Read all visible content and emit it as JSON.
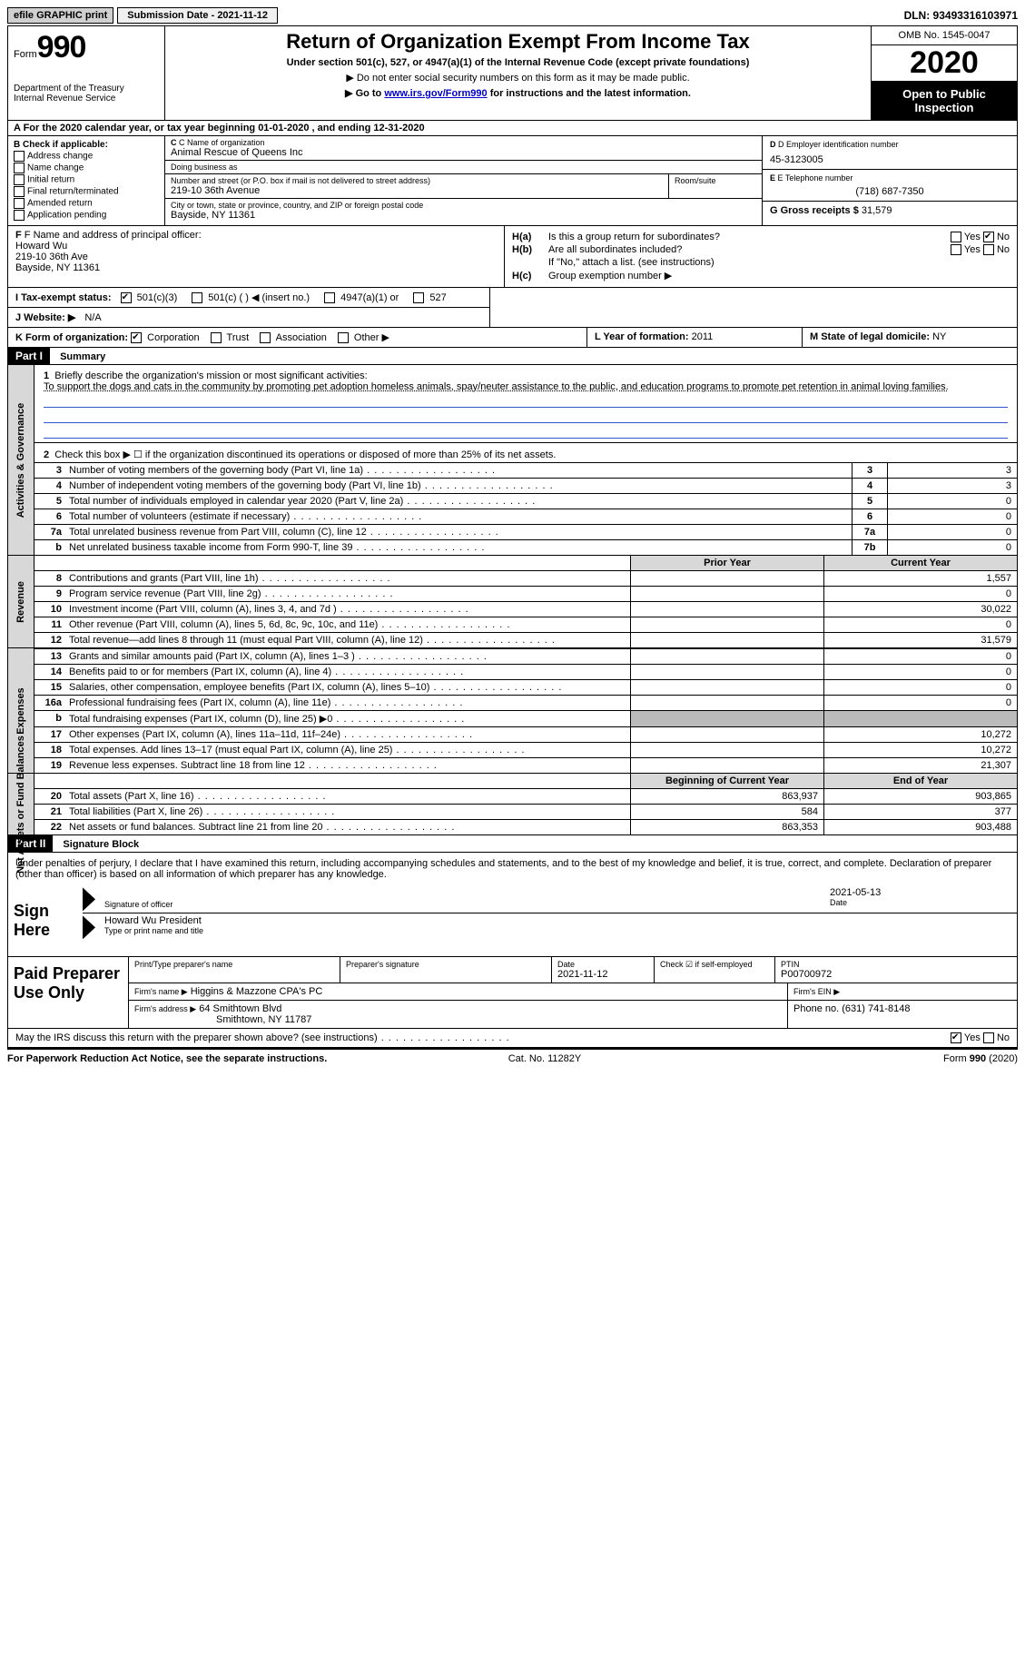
{
  "topbar": {
    "efile": "efile GRAPHIC print",
    "submission_label": "Submission Date - 2021-11-12",
    "dln": "DLN: 93493316103971"
  },
  "header": {
    "form_word": "Form",
    "form_number": "990",
    "dept": "Department of the Treasury\nInternal Revenue Service",
    "title": "Return of Organization Exempt From Income Tax",
    "subtitle": "Under section 501(c), 527, or 4947(a)(1) of the Internal Revenue Code (except private foundations)",
    "note1": "▶ Do not enter social security numbers on this form as it may be made public.",
    "note2_pre": "▶ Go to ",
    "note2_link": "www.irs.gov/Form990",
    "note2_post": " for instructions and the latest information.",
    "omb": "OMB No. 1545-0047",
    "year": "2020",
    "inspection": "Open to Public Inspection"
  },
  "row_a": "A For the 2020 calendar year, or tax year beginning 01-01-2020   , and ending 12-31-2020",
  "section_b": {
    "label": "B Check if applicable:",
    "items": [
      "Address change",
      "Name change",
      "Initial return",
      "Final return/terminated",
      "Amended return",
      "Application pending"
    ]
  },
  "section_c": {
    "name_label": "C Name of organization",
    "name": "Animal Rescue of Queens Inc",
    "dba_label": "Doing business as",
    "dba": "",
    "street_label": "Number and street (or P.O. box if mail is not delivered to street address)",
    "street": "219-10 36th Avenue",
    "room_label": "Room/suite",
    "city_label": "City or town, state or province, country, and ZIP or foreign postal code",
    "city": "Bayside, NY  11361"
  },
  "section_d": {
    "label": "D Employer identification number",
    "value": "45-3123005"
  },
  "section_e": {
    "label": "E Telephone number",
    "value": "(718) 687-7350"
  },
  "section_g": {
    "label": "G Gross receipts $",
    "value": "31,579"
  },
  "section_f": {
    "label": "F  Name and address of principal officer:",
    "name": "Howard Wu",
    "addr1": "219-10 36th Ave",
    "addr2": "Bayside, NY  11361"
  },
  "section_h": {
    "a_label": "H(a)",
    "a_text": "Is this a group return for subordinates?",
    "a_no_checked": true,
    "b_label": "H(b)",
    "b_text": "Are all subordinates included?",
    "b_note": "If \"No,\" attach a list. (see instructions)",
    "c_label": "H(c)",
    "c_text": "Group exemption number ▶"
  },
  "row_i": {
    "label": "I  Tax-exempt status:",
    "opts": [
      "501(c)(3)",
      "501(c) (  ) ◀ (insert no.)",
      "4947(a)(1) or",
      "527"
    ],
    "checked_index": 0
  },
  "row_j": {
    "label": "J  Website: ▶",
    "value": "N/A"
  },
  "row_k": {
    "label": "K Form of organization:",
    "opts": [
      "Corporation",
      "Trust",
      "Association",
      "Other ▶"
    ],
    "checked_index": 0
  },
  "row_l": {
    "label": "L Year of formation:",
    "value": "2011"
  },
  "row_m": {
    "label": "M State of legal domicile:",
    "value": "NY"
  },
  "part1": {
    "hdr": "Part I",
    "title": "Summary",
    "q1_label": "1",
    "q1_text": "Briefly describe the organization's mission or most significant activities:",
    "q1_answer": "To support the dogs and cats in the community by promoting pet adoption homeless animals, spay/neuter assistance to the public, and education programs to promote pet retention in animal loving families.",
    "q2_label": "2",
    "q2_text": "Check this box ▶ ☐  if the organization discontinued its operations or disposed of more than 25% of its net assets.",
    "sides": {
      "gov": "Activities & Governance",
      "rev": "Revenue",
      "exp": "Expenses",
      "net": "Net Assets or Fund Balances"
    },
    "gov_rows": [
      {
        "n": "3",
        "t": "Number of voting members of the governing body (Part VI, line 1a)",
        "box": "3",
        "v": "3"
      },
      {
        "n": "4",
        "t": "Number of independent voting members of the governing body (Part VI, line 1b)",
        "box": "4",
        "v": "3"
      },
      {
        "n": "5",
        "t": "Total number of individuals employed in calendar year 2020 (Part V, line 2a)",
        "box": "5",
        "v": "0"
      },
      {
        "n": "6",
        "t": "Total number of volunteers (estimate if necessary)",
        "box": "6",
        "v": "0"
      },
      {
        "n": "7a",
        "t": "Total unrelated business revenue from Part VIII, column (C), line 12",
        "box": "7a",
        "v": "0"
      },
      {
        "n": "b",
        "t": "Net unrelated business taxable income from Form 990-T, line 39",
        "box": "7b",
        "v": "0"
      }
    ],
    "pycy_hdr": {
      "py": "Prior Year",
      "cy": "Current Year"
    },
    "rev_rows": [
      {
        "n": "8",
        "t": "Contributions and grants (Part VIII, line 1h)",
        "py": "",
        "cy": "1,557"
      },
      {
        "n": "9",
        "t": "Program service revenue (Part VIII, line 2g)",
        "py": "",
        "cy": "0"
      },
      {
        "n": "10",
        "t": "Investment income (Part VIII, column (A), lines 3, 4, and 7d )",
        "py": "",
        "cy": "30,022"
      },
      {
        "n": "11",
        "t": "Other revenue (Part VIII, column (A), lines 5, 6d, 8c, 9c, 10c, and 11e)",
        "py": "",
        "cy": "0"
      },
      {
        "n": "12",
        "t": "Total revenue—add lines 8 through 11 (must equal Part VIII, column (A), line 12)",
        "py": "",
        "cy": "31,579"
      }
    ],
    "exp_rows": [
      {
        "n": "13",
        "t": "Grants and similar amounts paid (Part IX, column (A), lines 1–3 )",
        "py": "",
        "cy": "0"
      },
      {
        "n": "14",
        "t": "Benefits paid to or for members (Part IX, column (A), line 4)",
        "py": "",
        "cy": "0"
      },
      {
        "n": "15",
        "t": "Salaries, other compensation, employee benefits (Part IX, column (A), lines 5–10)",
        "py": "",
        "cy": "0"
      },
      {
        "n": "16a",
        "t": "Professional fundraising fees (Part IX, column (A), line 11e)",
        "py": "",
        "cy": "0"
      },
      {
        "n": "b",
        "t": "Total fundraising expenses (Part IX, column (D), line 25) ▶0",
        "py": "GRAY",
        "cy": "GRAY"
      },
      {
        "n": "17",
        "t": "Other expenses (Part IX, column (A), lines 11a–11d, 11f–24e)",
        "py": "",
        "cy": "10,272"
      },
      {
        "n": "18",
        "t": "Total expenses. Add lines 13–17 (must equal Part IX, column (A), line 25)",
        "py": "",
        "cy": "10,272"
      },
      {
        "n": "19",
        "t": "Revenue less expenses. Subtract line 18 from line 12",
        "py": "",
        "cy": "21,307"
      }
    ],
    "net_hdr": {
      "py": "Beginning of Current Year",
      "cy": "End of Year"
    },
    "net_rows": [
      {
        "n": "20",
        "t": "Total assets (Part X, line 16)",
        "py": "863,937",
        "cy": "903,865"
      },
      {
        "n": "21",
        "t": "Total liabilities (Part X, line 26)",
        "py": "584",
        "cy": "377"
      },
      {
        "n": "22",
        "t": "Net assets or fund balances. Subtract line 21 from line 20",
        "py": "863,353",
        "cy": "903,488"
      }
    ]
  },
  "part2": {
    "hdr": "Part II",
    "title": "Signature Block",
    "decl": "Under penalties of perjury, I declare that I have examined this return, including accompanying schedules and statements, and to the best of my knowledge and belief, it is true, correct, and complete. Declaration of preparer (other than officer) is based on all information of which preparer has any knowledge."
  },
  "sign": {
    "label": "Sign Here",
    "sig_label": "Signature of officer",
    "date": "2021-05-13",
    "date_label": "Date",
    "name": "Howard Wu  President",
    "name_label": "Type or print name and title"
  },
  "paid": {
    "label": "Paid Preparer Use Only",
    "r1": {
      "c1": "Print/Type preparer's name",
      "c2": "Preparer's signature",
      "c3l": "Date",
      "c3v": "2021-11-12",
      "c4": "Check ☑ if self-employed",
      "c5l": "PTIN",
      "c5v": "P00700972"
    },
    "r2": {
      "c1": "Firm's name    ▶",
      "c1v": "Higgins & Mazzone CPA's PC",
      "c2": "Firm's EIN ▶"
    },
    "r3": {
      "c1": "Firm's address ▶",
      "c1v1": "64 Smithtown Blvd",
      "c1v2": "Smithtown, NY  11787",
      "c2": "Phone no. (631) 741-8148"
    }
  },
  "discuss": {
    "text": "May the IRS discuss this return with the preparer shown above? (see instructions)",
    "yes_checked": true
  },
  "footer": {
    "left": "For Paperwork Reduction Act Notice, see the separate instructions.",
    "mid": "Cat. No. 11282Y",
    "right": "Form 990 (2020)"
  }
}
